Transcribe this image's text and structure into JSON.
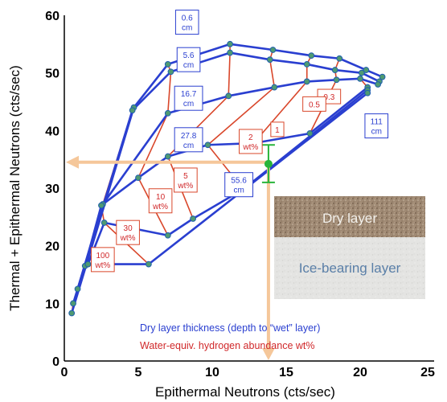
{
  "chart_data": {
    "type": "line",
    "title": "",
    "xlabel": "Epithermal Neutrons (cts/sec)",
    "ylabel": "Thermal + Epithermal Neutrons (cts/sec)",
    "xlim": [
      0,
      25
    ],
    "ylim": [
      0,
      60
    ],
    "xticks": [
      "0",
      "5",
      "10",
      "15",
      "20",
      "25"
    ],
    "yticks": [
      "0",
      "10",
      "20",
      "30",
      "40",
      "50",
      "60"
    ],
    "grid": false,
    "thickness_series": [
      {
        "name": "0.6 cm",
        "x": [
          0.5,
          4.7,
          7.0,
          11.2,
          14.1,
          16.7,
          18.6,
          20.4,
          21.5
        ],
        "y": [
          8.3,
          44.0,
          51.5,
          55.0,
          54.0,
          53.0,
          52.5,
          50.5,
          49.3
        ]
      },
      {
        "name": "5.6 cm",
        "x": [
          0.6,
          4.6,
          7.2,
          11.2,
          13.9,
          16.4,
          18.3,
          20.1,
          21.3
        ],
        "y": [
          10.0,
          43.5,
          50.2,
          53.5,
          52.3,
          51.5,
          50.5,
          50.0,
          48.5
        ]
      },
      {
        "name": "16.7 cm",
        "x": [
          0.9,
          2.6,
          7.0,
          11.1,
          14.2,
          16.4,
          18.4,
          20.0,
          21.2
        ],
        "y": [
          12.5,
          27.2,
          43.0,
          46.0,
          47.5,
          48.5,
          48.8,
          49.0,
          48.0
        ]
      },
      {
        "name": "27.8 cm",
        "x": [
          1.4,
          2.5,
          5.0,
          7.0,
          9.7,
          12.8,
          16.6,
          20.5
        ],
        "y": [
          16.5,
          27.0,
          31.8,
          35.5,
          37.5,
          37.8,
          39.5,
          47.5
        ]
      },
      {
        "name": "55.6 cm",
        "x": [
          1.6,
          2.7,
          7.0,
          8.7,
          12.1,
          20.5
        ],
        "y": [
          16.8,
          24.0,
          21.8,
          24.7,
          29.8,
          47.0
        ]
      },
      {
        "name": "111 cm",
        "x": [
          1.6,
          5.7,
          20.5
        ],
        "y": [
          16.8,
          16.8,
          46.5
        ]
      }
    ],
    "abundance_series": [
      {
        "name": "100 wt%",
        "x": [
          0.5,
          0.6,
          0.9,
          1.4,
          1.6,
          1.6
        ],
        "y": [
          8.3,
          10.0,
          12.5,
          16.5,
          16.8,
          16.8
        ]
      },
      {
        "name": "30 wt%",
        "x": [
          4.7,
          4.6,
          2.6,
          2.5,
          2.7,
          5.7
        ],
        "y": [
          44.0,
          43.5,
          27.2,
          27.0,
          24.0,
          16.8
        ]
      },
      {
        "name": "10 wt%",
        "x": [
          7.0,
          7.2,
          7.0,
          5.0,
          7.0
        ],
        "y": [
          51.5,
          50.2,
          43.0,
          31.8,
          21.8
        ]
      },
      {
        "name": "5 wt%",
        "x": [
          11.2,
          11.2,
          11.1,
          7.0,
          8.7
        ],
        "y": [
          55.0,
          53.5,
          46.0,
          35.5,
          24.7
        ]
      },
      {
        "name": "2 wt%",
        "x": [
          14.1,
          13.9,
          14.2,
          9.7,
          12.1
        ],
        "y": [
          54.0,
          52.3,
          47.5,
          37.5,
          29.8
        ]
      },
      {
        "name": "1 wt%",
        "x": [
          16.7,
          16.4,
          16.4,
          12.8
        ],
        "y": [
          53.0,
          51.5,
          48.5,
          37.8
        ]
      },
      {
        "name": "0.5 wt%",
        "x": [
          18.6,
          18.3,
          18.4,
          16.6
        ],
        "y": [
          52.5,
          50.5,
          48.8,
          39.5
        ]
      },
      {
        "name": "0.3 wt%",
        "x": [
          20.4,
          20.1,
          20.0,
          20.5
        ],
        "y": [
          50.5,
          50.0,
          49.0,
          47.5
        ]
      }
    ],
    "measurement": {
      "x": 13.8,
      "y": 34.2,
      "y_err": [
        31.0,
        37.5
      ],
      "arrow_to_y_axis": 34.5,
      "arrow_to_x_axis": 0
    }
  },
  "labels": {
    "thickness": [
      "0.6\ncm",
      "5.6\ncm",
      "16.7\ncm",
      "27.8\ncm",
      "55.6\ncm",
      "111\ncm"
    ],
    "abundance": [
      "2\nwt%",
      "1",
      "0.3",
      "0.5",
      "5\nwt%",
      "10\nwt%",
      "30\nwt%",
      "100\nwt%"
    ]
  },
  "inset": {
    "dry_layer": "Dry layer",
    "ice_layer": "Ice-bearing layer"
  },
  "legend": {
    "blue_text": "Dry layer thickness (depth to “wet” layer)",
    "red_text": "Water-equiv. hydrogen abundance wt%"
  },
  "colors": {
    "blue": "#2a3fd0",
    "red": "#d9472b",
    "marker": "#4f9a72",
    "arrow": "#f5c79a",
    "errbar": "#28b43a"
  }
}
